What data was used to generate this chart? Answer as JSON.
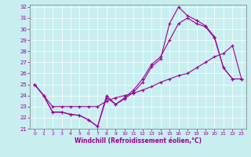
{
  "title": "",
  "xlabel": "Windchill (Refroidissement éolien,°C)",
  "background_color": "#c8eef0",
  "line_color": "#990099",
  "grid_color": "#ffffff",
  "xlim": [
    -0.5,
    23.5
  ],
  "ylim": [
    21,
    32.2
  ],
  "xticks": [
    0,
    1,
    2,
    3,
    4,
    5,
    6,
    7,
    8,
    9,
    10,
    11,
    12,
    13,
    14,
    15,
    16,
    17,
    18,
    19,
    20,
    21,
    22,
    23
  ],
  "yticks": [
    21,
    22,
    23,
    24,
    25,
    26,
    27,
    28,
    29,
    30,
    31,
    32
  ],
  "line1_x": [
    0,
    1,
    2,
    3,
    4,
    5,
    6,
    7,
    8,
    9,
    10,
    11,
    12,
    13,
    14,
    15,
    16,
    17,
    18,
    19,
    20,
    21,
    22,
    23
  ],
  "line1_y": [
    25.0,
    24.0,
    22.5,
    22.5,
    22.3,
    22.2,
    21.8,
    21.2,
    23.8,
    23.2,
    23.7,
    24.3,
    25.2,
    26.6,
    27.3,
    30.5,
    32.0,
    31.2,
    30.8,
    30.3,
    29.3,
    26.5,
    25.5,
    25.5
  ],
  "line2_x": [
    0,
    1,
    2,
    3,
    4,
    5,
    6,
    7,
    8,
    9,
    10,
    11,
    12,
    13,
    14,
    15,
    16,
    17,
    18,
    19,
    20,
    21,
    22,
    23
  ],
  "line2_y": [
    25.0,
    24.0,
    22.5,
    22.5,
    22.3,
    22.2,
    21.8,
    21.2,
    24.0,
    23.2,
    23.8,
    24.5,
    25.5,
    26.8,
    27.5,
    29.0,
    30.5,
    31.0,
    30.5,
    30.2,
    29.2,
    26.5,
    25.5,
    25.5
  ],
  "line3_x": [
    0,
    1,
    2,
    3,
    4,
    5,
    6,
    7,
    8,
    9,
    10,
    11,
    12,
    13,
    14,
    15,
    16,
    17,
    18,
    19,
    20,
    21,
    22,
    23
  ],
  "line3_y": [
    25.0,
    24.0,
    23.0,
    23.0,
    23.0,
    23.0,
    23.0,
    23.0,
    23.5,
    23.8,
    24.0,
    24.2,
    24.5,
    24.8,
    25.2,
    25.5,
    25.8,
    26.0,
    26.5,
    27.0,
    27.5,
    27.8,
    28.5,
    25.5
  ],
  "tick_fontsize": 5.0,
  "xlabel_fontsize": 5.5,
  "marker": "+",
  "markersize": 3.0,
  "linewidth": 0.8
}
